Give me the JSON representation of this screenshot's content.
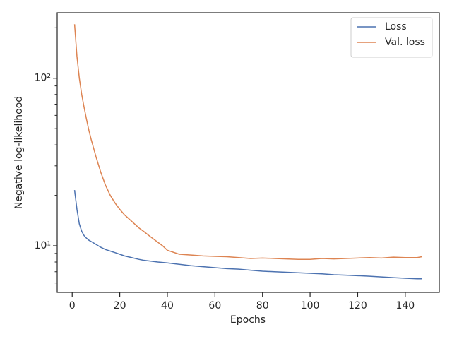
{
  "chart_data": {
    "type": "line",
    "xlabel": "Epochs",
    "ylabel": "Negative log-likelihood",
    "x": [
      1,
      2,
      3,
      4,
      5,
      6,
      7,
      8,
      10,
      12,
      14,
      16,
      18,
      20,
      22,
      25,
      28,
      30,
      33,
      36,
      38,
      40,
      45,
      50,
      55,
      60,
      65,
      70,
      75,
      80,
      85,
      90,
      95,
      100,
      105,
      110,
      115,
      120,
      125,
      130,
      135,
      140,
      145,
      147
    ],
    "series": [
      {
        "name": "Loss",
        "color": "#4c72b0",
        "values": [
          21.5,
          16.5,
          13.5,
          12.2,
          11.5,
          11.1,
          10.8,
          10.6,
          10.2,
          9.8,
          9.5,
          9.3,
          9.1,
          8.9,
          8.7,
          8.5,
          8.3,
          8.2,
          8.1,
          8.0,
          7.95,
          7.9,
          7.75,
          7.6,
          7.5,
          7.4,
          7.3,
          7.25,
          7.15,
          7.05,
          7.0,
          6.95,
          6.9,
          6.85,
          6.8,
          6.72,
          6.68,
          6.63,
          6.58,
          6.52,
          6.45,
          6.4,
          6.35,
          6.35
        ]
      },
      {
        "name": "Val. loss",
        "color": "#dd8452",
        "values": [
          210,
          135,
          100,
          80,
          67,
          57,
          49,
          43,
          34,
          27.5,
          23,
          20,
          18,
          16.5,
          15.3,
          14,
          12.8,
          12.2,
          11.3,
          10.5,
          10.0,
          9.4,
          8.9,
          8.8,
          8.7,
          8.65,
          8.6,
          8.5,
          8.4,
          8.45,
          8.4,
          8.35,
          8.3,
          8.3,
          8.4,
          8.35,
          8.4,
          8.45,
          8.5,
          8.45,
          8.55,
          8.5,
          8.5,
          8.6
        ]
      }
    ],
    "xlim": [
      -6.3,
      154.3
    ],
    "xticks": [
      0,
      20,
      40,
      60,
      80,
      100,
      120,
      140
    ],
    "ylim": [
      5.27,
      246
    ],
    "log_y": true,
    "yticks": [
      {
        "value": 10,
        "label": "10¹"
      },
      {
        "value": 100,
        "label": "10²"
      }
    ],
    "yticks_minor": [
      6,
      7,
      8,
      9,
      20,
      30,
      40,
      50,
      60,
      70,
      80,
      90,
      200
    ],
    "grid": false,
    "legend": "upper-right"
  }
}
